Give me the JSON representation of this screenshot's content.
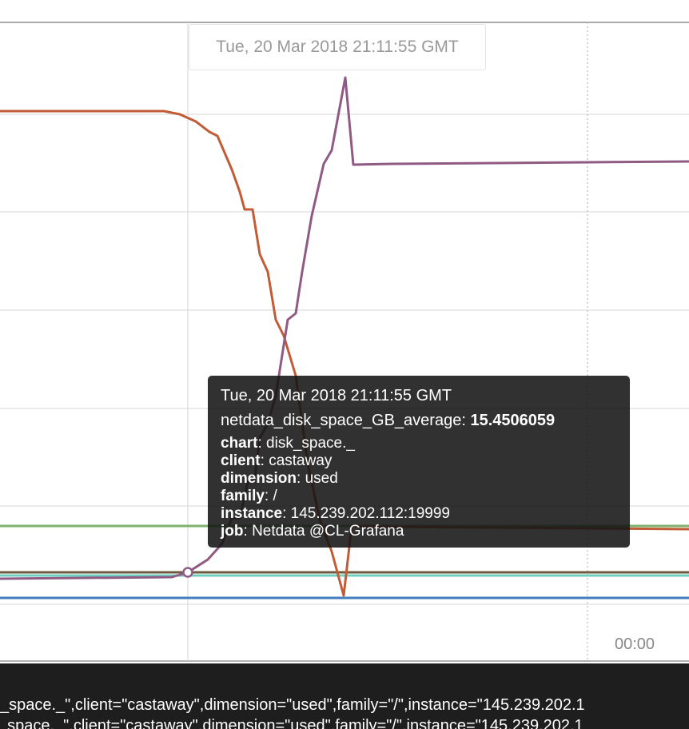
{
  "crosshair_time": "Tue, 20 Mar 2018 21:11:55 GMT",
  "x_axis_tick": "00:00",
  "tooltip": {
    "time": "Tue, 20 Mar 2018 21:11:55 GMT",
    "series_name": "netdata_disk_space_GB_average",
    "series_value": "15.4506059",
    "labels": [
      {
        "key": "chart",
        "value": "disk_space._"
      },
      {
        "key": "client",
        "value": "castaway"
      },
      {
        "key": "dimension",
        "value": "used"
      },
      {
        "key": "family",
        "value": "/"
      },
      {
        "key": "instance",
        "value": "145.239.202.112:19999"
      },
      {
        "key": "job",
        "value": "Netdata @CL-Grafana"
      }
    ]
  },
  "legend_rows": [
    "_space._\",client=\"castaway\",dimension=\"used\",family=\"/\",instance=\"145.239.202.1",
    "_space._\",client=\"castaway\",dimension=\"used\",family=\"/\",instance=\"145.239.202.1"
  ],
  "series_colors": {
    "red": "#c15c37",
    "purple": "#8f5a84",
    "green": "#7eb26d",
    "brown": "#6d5a3e",
    "teal": "#6fcfc0",
    "blue": "#447ebc"
  }
}
